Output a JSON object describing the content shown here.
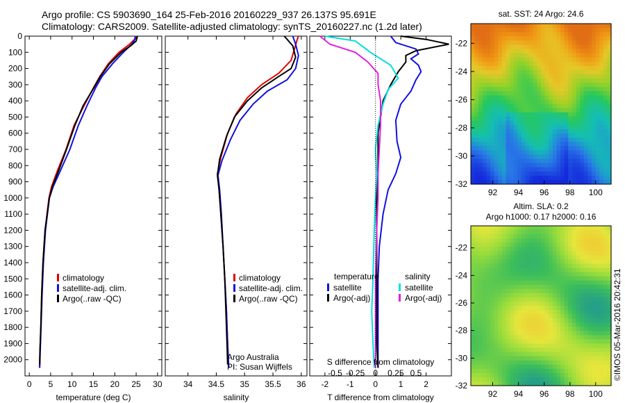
{
  "header": {
    "line1": "Argo profile: CS 5903690_164 25-Feb-2016 20160229_937 26.137S 95.691E",
    "line2": "Climatology: CARS2009. Satellite-adjusted climatology: synTS_20160227.nc (1.2d later)"
  },
  "credit": "©IMOS 05-Mar-2016 20:42:31",
  "colors": {
    "climatology": "#e00000",
    "satellite": "#1010e0",
    "argo": "#000000",
    "sat_salinity": "#00e0e0",
    "argo_salinity": "#e020e0"
  },
  "depth_axis": {
    "min": 0,
    "max": 2100,
    "ticks": [
      0,
      100,
      200,
      300,
      400,
      500,
      600,
      700,
      800,
      900,
      1000,
      1100,
      1200,
      1300,
      1400,
      1500,
      1600,
      1700,
      1800,
      1900,
      2000
    ]
  },
  "chart_data": [
    {
      "type": "line",
      "id": "temperature",
      "xlabel": "temperature (deg C)",
      "xlim": [
        -1,
        31
      ],
      "xticks": [
        0,
        5,
        10,
        15,
        20,
        25,
        30
      ],
      "legend": [
        "climatology",
        "satellite-adj. clim.",
        "Argo(..raw -QC)"
      ],
      "series": [
        {
          "name": "climatology",
          "color": "#e00000",
          "points": [
            [
              25,
              0
            ],
            [
              24.6,
              20
            ],
            [
              23.5,
              50
            ],
            [
              21,
              100
            ],
            [
              18.5,
              170
            ],
            [
              16.5,
              250
            ],
            [
              15,
              320
            ],
            [
              12.8,
              430
            ],
            [
              10.5,
              550
            ],
            [
              8.6,
              700
            ],
            [
              6.6,
              830
            ],
            [
              5.2,
              930
            ],
            [
              4.6,
              1000
            ],
            [
              3.7,
              1200
            ],
            [
              3.2,
              1400
            ],
            [
              2.9,
              1600
            ],
            [
              2.7,
              1800
            ],
            [
              2.5,
              1950
            ],
            [
              2.4,
              2050
            ]
          ]
        },
        {
          "name": "satellite-adj. clim.",
          "color": "#1010e0",
          "points": [
            [
              24.8,
              0
            ],
            [
              24.7,
              20
            ],
            [
              24,
              50
            ],
            [
              22,
              100
            ],
            [
              19.5,
              170
            ],
            [
              17,
              250
            ],
            [
              15.5,
              320
            ],
            [
              13.5,
              430
            ],
            [
              11.5,
              550
            ],
            [
              9.5,
              700
            ],
            [
              7.3,
              830
            ],
            [
              5.6,
              930
            ],
            [
              4.7,
              1000
            ],
            [
              3.8,
              1200
            ],
            [
              3.3,
              1400
            ],
            [
              3,
              1600
            ],
            [
              2.75,
              1800
            ],
            [
              2.55,
              1950
            ],
            [
              2.45,
              2050
            ]
          ]
        },
        {
          "name": "Argo(..raw -QC)",
          "color": "#000000",
          "points": [
            [
              25.3,
              0
            ],
            [
              25,
              30
            ],
            [
              23.7,
              60
            ],
            [
              21.5,
              100
            ],
            [
              18.8,
              170
            ],
            [
              16.6,
              250
            ],
            [
              15.1,
              320
            ],
            [
              12.6,
              430
            ],
            [
              10.7,
              550
            ],
            [
              8.7,
              700
            ],
            [
              6.9,
              830
            ],
            [
              5.4,
              930
            ],
            [
              4.7,
              1000
            ],
            [
              3.7,
              1200
            ],
            [
              3.2,
              1400
            ],
            [
              2.9,
              1600
            ],
            [
              2.7,
              1800
            ],
            [
              2.5,
              1950
            ],
            [
              2.45,
              2030
            ]
          ]
        }
      ]
    },
    {
      "type": "line",
      "id": "salinity",
      "xlabel": "salinity",
      "xlim": [
        33.6,
        36.1
      ],
      "xticks": [
        34,
        34.5,
        35,
        35.5,
        36
      ],
      "legend": [
        "climatology",
        "satellite-adj. clim.",
        "Argo(..raw -QC)"
      ],
      "annotation": [
        "Argo Australia",
        "PI: Susan Wijffels"
      ],
      "series": [
        {
          "name": "climatology",
          "color": "#e00000",
          "points": [
            [
              35.95,
              0
            ],
            [
              35.92,
              30
            ],
            [
              35.88,
              80
            ],
            [
              35.82,
              150
            ],
            [
              35.6,
              230
            ],
            [
              35.3,
              300
            ],
            [
              35.05,
              380
            ],
            [
              34.85,
              480
            ],
            [
              34.7,
              600
            ],
            [
              34.58,
              750
            ],
            [
              34.52,
              850
            ],
            [
              34.55,
              950
            ],
            [
              34.58,
              1100
            ],
            [
              34.62,
              1300
            ],
            [
              34.65,
              1500
            ],
            [
              34.68,
              1700
            ],
            [
              34.7,
              1900
            ],
            [
              34.72,
              2050
            ]
          ]
        },
        {
          "name": "satellite-adj. clim.",
          "color": "#1010e0",
          "points": [
            [
              35.85,
              0
            ],
            [
              35.9,
              50
            ],
            [
              35.95,
              120
            ],
            [
              35.9,
              200
            ],
            [
              35.75,
              270
            ],
            [
              35.4,
              340
            ],
            [
              35.15,
              420
            ],
            [
              34.92,
              520
            ],
            [
              34.75,
              640
            ],
            [
              34.6,
              770
            ],
            [
              34.53,
              860
            ],
            [
              34.56,
              950
            ],
            [
              34.59,
              1100
            ],
            [
              34.62,
              1300
            ],
            [
              34.65,
              1500
            ],
            [
              34.68,
              1700
            ],
            [
              34.7,
              1900
            ],
            [
              34.72,
              2050
            ]
          ]
        },
        {
          "name": "Argo(..raw -QC)",
          "color": "#000000",
          "points": [
            [
              35.7,
              0
            ],
            [
              35.85,
              60
            ],
            [
              35.9,
              130
            ],
            [
              35.82,
              200
            ],
            [
              35.6,
              250
            ],
            [
              35.3,
              320
            ],
            [
              35.05,
              400
            ],
            [
              34.82,
              500
            ],
            [
              34.68,
              620
            ],
            [
              34.56,
              760
            ],
            [
              34.52,
              860
            ],
            [
              34.55,
              950
            ],
            [
              34.58,
              1100
            ],
            [
              34.62,
              1300
            ],
            [
              34.65,
              1500
            ],
            [
              34.67,
              1700
            ],
            [
              34.69,
              1900
            ],
            [
              34.7,
              2030
            ]
          ]
        }
      ]
    },
    {
      "type": "line",
      "id": "differences",
      "xlabel": "T difference from climatology",
      "xlabel_top": "S difference from climatology",
      "xlim": [
        -2.6,
        3.0
      ],
      "xticks": [
        -2,
        -1,
        0,
        1,
        2
      ],
      "xticks_top": [
        "-0.5",
        "-0.25",
        "0",
        "0.25",
        "0.5"
      ],
      "legend_temperature": [
        "temperature",
        "satellite",
        "Argo(-adj)"
      ],
      "legend_salinity": [
        "salinity",
        "satellite",
        "Argo(-adj)"
      ],
      "series": [
        {
          "name": "temperature satellite",
          "color": "#1010e0",
          "points": [
            [
              0.6,
              0
            ],
            [
              0.8,
              40
            ],
            [
              1.6,
              80
            ],
            [
              1.7,
              110
            ],
            [
              1.4,
              140
            ],
            [
              1.7,
              180
            ],
            [
              1.8,
              220
            ],
            [
              1.6,
              270
            ],
            [
              1.4,
              340
            ],
            [
              1.0,
              420
            ],
            [
              0.8,
              520
            ],
            [
              0.85,
              650
            ],
            [
              1.0,
              750
            ],
            [
              0.8,
              850
            ],
            [
              0.5,
              950
            ],
            [
              0.3,
              1100
            ],
            [
              0.15,
              1300
            ],
            [
              0.1,
              1500
            ],
            [
              0.1,
              1700
            ],
            [
              0.1,
              1900
            ],
            [
              0.1,
              2050
            ]
          ]
        },
        {
          "name": "temperature Argo(-adj)",
          "color": "#000000",
          "points": [
            [
              1.0,
              0
            ],
            [
              2.0,
              20
            ],
            [
              2.9,
              50
            ],
            [
              1.6,
              90
            ],
            [
              1.2,
              120
            ],
            [
              1.2,
              160
            ],
            [
              0.9,
              220
            ],
            [
              0.6,
              300
            ],
            [
              0.3,
              400
            ],
            [
              0.1,
              600
            ],
            [
              0.1,
              800
            ],
            [
              0.05,
              1000
            ],
            [
              0.05,
              1300
            ],
            [
              0.05,
              1600
            ],
            [
              0.05,
              1900
            ],
            [
              0.1,
              2050
            ]
          ]
        },
        {
          "name": "salinity satellite",
          "color": "#00e0e0",
          "points": [
            [
              -2,
              0
            ],
            [
              -0.8,
              30
            ],
            [
              -0.2,
              100
            ],
            [
              0.6,
              180
            ],
            [
              0.9,
              260
            ],
            [
              0.5,
              330
            ],
            [
              0.3,
              420
            ],
            [
              0.1,
              550
            ],
            [
              0.0,
              700
            ],
            [
              0.05,
              850
            ],
            [
              0.0,
              1000
            ],
            [
              -0.05,
              1200
            ],
            [
              -0.1,
              1500
            ],
            [
              -0.15,
              1700
            ],
            [
              -0.1,
              1900
            ],
            [
              -0.05,
              2050
            ]
          ]
        },
        {
          "name": "salinity Argo(-adj)",
          "color": "#e020e0",
          "points": [
            [
              -2.2,
              0
            ],
            [
              -1.8,
              50
            ],
            [
              -0.8,
              100
            ],
            [
              -0.3,
              160
            ],
            [
              0.1,
              230
            ],
            [
              0.1,
              300
            ],
            [
              0.2,
              400
            ],
            [
              0.2,
              550
            ],
            [
              0.15,
              700
            ],
            [
              0.1,
              850
            ],
            [
              0.1,
              1000
            ],
            [
              0.05,
              1200
            ],
            [
              0.0,
              1500
            ],
            [
              0.0,
              1700
            ],
            [
              0.0,
              1900
            ],
            [
              0.0,
              2050
            ]
          ]
        }
      ]
    },
    {
      "type": "heatmap",
      "id": "sst-map",
      "title": "sat. SST: 24 Argo: 24.6",
      "xlim": [
        90.3,
        101.2
      ],
      "ylim": [
        -32,
        -20.6
      ],
      "xticks": [
        92,
        94,
        96,
        98,
        100
      ],
      "yticks": [
        -22,
        -24,
        -26,
        -28,
        -30,
        -32
      ],
      "pattern": "sst"
    },
    {
      "type": "heatmap",
      "id": "sla-map",
      "title": "Altim. SLA: 0.2",
      "subtitle": "Argo h1000: 0.17 h2000: 0.16",
      "xlim": [
        90.3,
        101.2
      ],
      "ylim": [
        -32,
        -20.4
      ],
      "xticks": [
        92,
        94,
        96,
        98,
        100
      ],
      "yticks": [
        -22,
        -24,
        -26,
        -28,
        -30,
        -32
      ],
      "pattern": "sla"
    }
  ]
}
